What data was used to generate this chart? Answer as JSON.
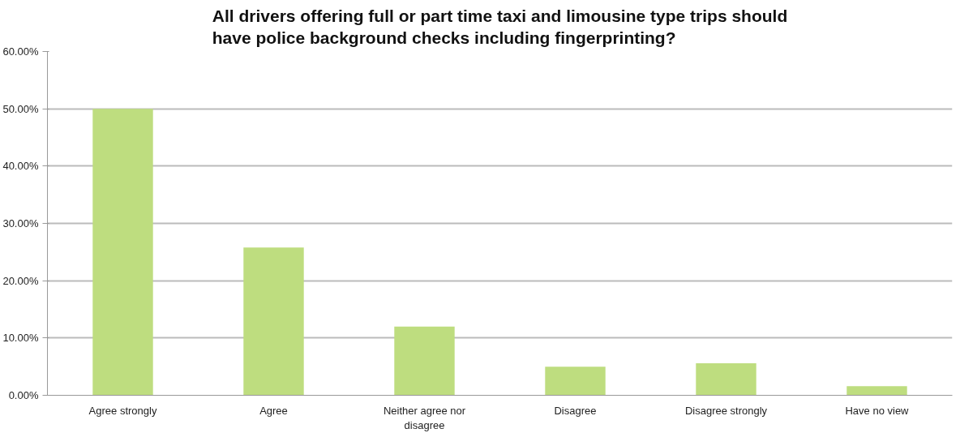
{
  "chart_data": {
    "type": "bar",
    "title": "All drivers offering full or part time taxi and limousine type trips should\nhave police background checks including fingerprinting?",
    "categories": [
      "Agree strongly",
      "Agree",
      "Neither agree nor\ndisagree",
      "Disagree",
      "Disagree strongly",
      "Have no view"
    ],
    "values": [
      50.0,
      25.8,
      12.0,
      5.0,
      5.6,
      1.6
    ],
    "color": "#bedd7f",
    "ylim": [
      0,
      60
    ],
    "yticks": [
      {
        "value": 0,
        "label": "0.00%"
      },
      {
        "value": 10,
        "label": "10.00%"
      },
      {
        "value": 20,
        "label": "20.00%"
      },
      {
        "value": 30,
        "label": "30.00%"
      },
      {
        "value": 40,
        "label": "40.00%"
      },
      {
        "value": 50,
        "label": "50.00%"
      },
      {
        "value": 60,
        "label": "60.00%"
      }
    ],
    "grid": "y"
  }
}
